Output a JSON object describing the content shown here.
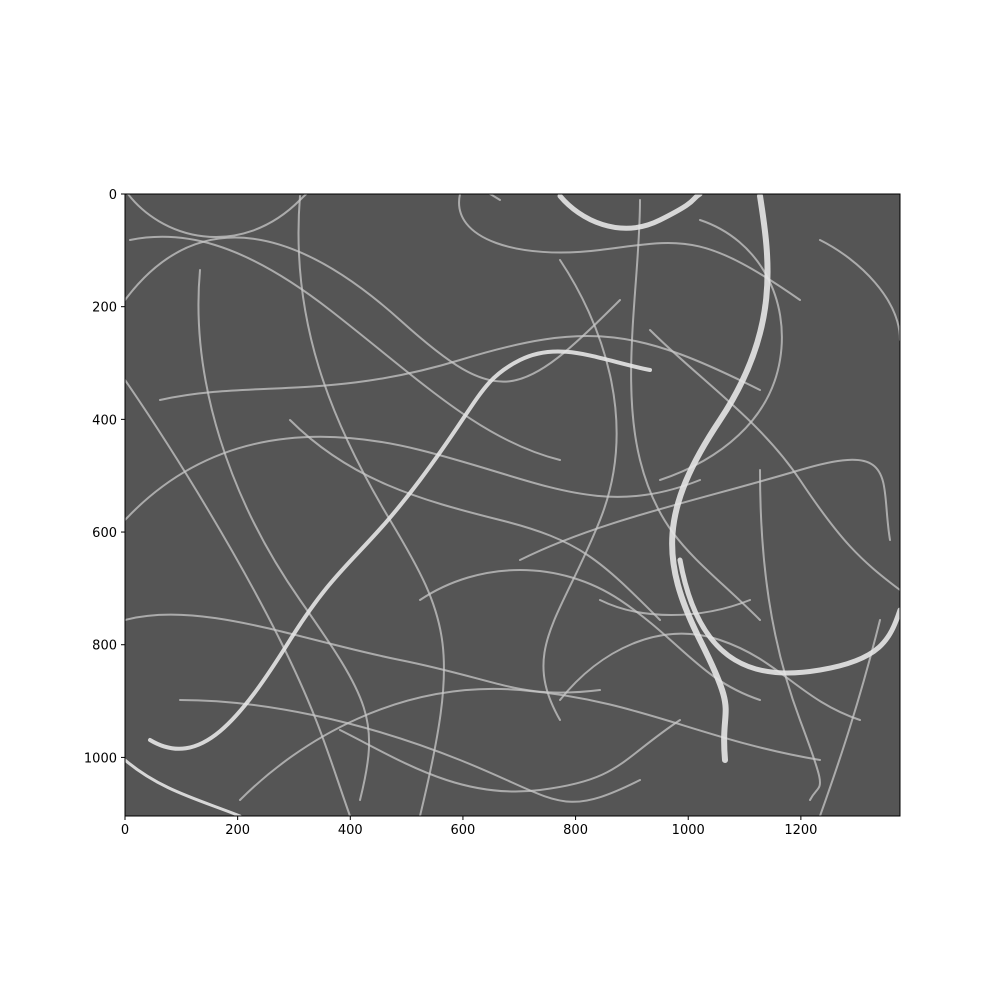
{
  "chart_data": {
    "type": "image",
    "xlim": [
      0,
      1376
    ],
    "ylim": [
      1104,
      0
    ],
    "xticks": [
      0,
      200,
      400,
      600,
      800,
      1000,
      1200
    ],
    "yticks": [
      0,
      200,
      400,
      600,
      800,
      1000
    ]
  }
}
